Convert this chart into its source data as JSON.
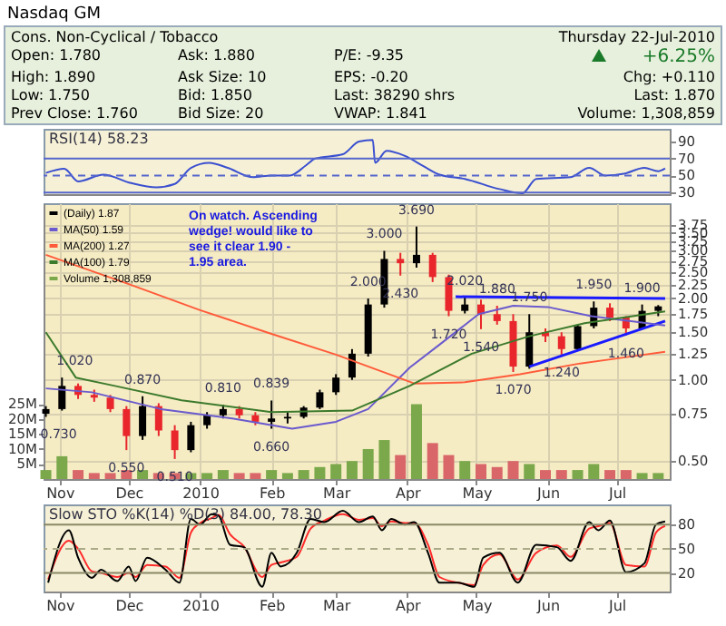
{
  "chart_data": [
    {
      "type": "other",
      "title": "Nasdaq GM",
      "annotations": [
        "Cons. Non-Cyclical / Tobacco",
        "Thursday 22-Jul-2010",
        "Open: 1.780",
        "Ask: 1.880",
        "P/E: -9.35",
        "+6.25%",
        "High: 1.890",
        "Ask Size: 10",
        "EPS: -0.20",
        "Chg: +0.110",
        "Low: 1.750",
        "Bid: 1.850",
        "Last: 38290 shrs",
        "Last: 1.870",
        "Prev Close: 1.760",
        "Bid Size: 20",
        "VWAP: 1.841",
        "Volume: 1,308,859"
      ]
    },
    {
      "type": "line",
      "title": "RSI(14) 58.23",
      "x": [
        "2009-10-26",
        "2009-11-03",
        "2009-11-09",
        "2009-11-20",
        "2009-12-02",
        "2009-12-13",
        "2009-12-21",
        "2009-12-28",
        "2010-01-05",
        "2010-01-13",
        "2010-01-24",
        "2010-02-01",
        "2010-02-09",
        "2010-02-16",
        "2010-02-20",
        "2010-03-04",
        "2010-03-11",
        "2010-03-17",
        "2010-03-18",
        "2010-03-23",
        "2010-03-31",
        "2010-04-08",
        "2010-04-15",
        "2010-04-26",
        "2010-05-11",
        "2010-05-21",
        "2010-05-27",
        "2010-06-11",
        "2010-06-19",
        "2010-06-26",
        "2010-07-04",
        "2010-07-13",
        "2010-07-19",
        "2010-07-22"
      ],
      "series": [
        {
          "color": "#3a4fd0",
          "values": [
            53,
            58,
            43,
            51,
            41,
            36,
            40,
            59,
            65,
            59,
            48,
            50,
            50,
            62,
            70,
            75,
            90,
            92,
            65,
            79,
            73,
            61,
            51,
            46,
            34,
            29,
            46,
            48,
            59,
            50,
            52,
            59,
            55,
            58.23
          ]
        }
      ],
      "xlim": [
        "2009-10-25",
        "2010-07-24"
      ],
      "ylim": [
        28,
        105
      ],
      "yticks": [
        30,
        50,
        70,
        90
      ],
      "tick_labels": "y",
      "ref_lines": [
        {
          "axis": "y",
          "value": 70,
          "color": "#5566cc"
        },
        {
          "axis": "y",
          "value": 50,
          "color": "#5566cc",
          "line_style": "dashed"
        },
        {
          "axis": "y",
          "value": 30,
          "color": "#5566cc"
        }
      ]
    },
    {
      "type": "candlestick",
      "x": [
        "2009-10-26",
        "2009-11-02",
        "2009-11-09",
        "2009-11-16",
        "2009-11-23",
        "2009-11-30",
        "2009-12-07",
        "2009-12-14",
        "2009-12-21",
        "2009-12-28",
        "2010-01-04",
        "2010-01-11",
        "2010-01-18",
        "2010-01-25",
        "2010-02-01",
        "2010-02-08",
        "2010-02-15",
        "2010-02-22",
        "2010-03-01",
        "2010-03-08",
        "2010-03-15",
        "2010-03-22",
        "2010-03-29",
        "2010-04-05",
        "2010-04-12",
        "2010-04-19",
        "2010-04-26",
        "2010-05-03",
        "2010-05-10",
        "2010-05-17",
        "2010-05-24",
        "2010-05-31",
        "2010-06-07",
        "2010-06-14",
        "2010-06-21",
        "2010-06-28",
        "2010-07-05",
        "2010-07-12",
        "2010-07-19"
      ],
      "series": [
        {
          "name": "(Daily) 1.87",
          "type": "candlestick",
          "color": "#000000",
          "colors": [
            "#000000",
            "#000000",
            "#e8262b",
            "#e8262b",
            "#e8262b",
            "#e8262b",
            "#000000",
            "#e8262b",
            "#e8262b",
            "#000000",
            "#000000",
            "#000000",
            "#e8262b",
            "#e8262b",
            "#000000",
            "#000000",
            "#000000",
            "#000000",
            "#000000",
            "#000000",
            "#000000",
            "#000000",
            "#e8262b",
            "#000000",
            "#e8262b",
            "#e8262b",
            "#000000",
            "#e8262b",
            "#e8262b",
            "#e8262b",
            "#000000",
            "#e8262b",
            "#e8262b",
            "#000000",
            "#000000",
            "#e8262b",
            "#e8262b",
            "#000000",
            "#000000"
          ],
          "ohlc": [
            [
              0.75,
              0.8,
              0.73,
              0.78
            ],
            [
              0.78,
              1.02,
              0.77,
              0.95
            ],
            [
              0.95,
              0.97,
              0.85,
              0.88
            ],
            [
              0.88,
              0.92,
              0.83,
              0.86
            ],
            [
              0.86,
              0.88,
              0.76,
              0.78
            ],
            [
              0.78,
              0.8,
              0.55,
              0.62
            ],
            [
              0.62,
              0.87,
              0.6,
              0.8
            ],
            [
              0.8,
              0.82,
              0.62,
              0.65
            ],
            [
              0.65,
              0.68,
              0.51,
              0.55
            ],
            [
              0.55,
              0.7,
              0.54,
              0.68
            ],
            [
              0.68,
              0.76,
              0.66,
              0.74
            ],
            [
              0.74,
              0.81,
              0.72,
              0.78
            ],
            [
              0.78,
              0.8,
              0.72,
              0.74
            ],
            [
              0.74,
              0.76,
              0.68,
              0.7
            ],
            [
              0.7,
              0.839,
              0.66,
              0.72
            ],
            [
              0.72,
              0.76,
              0.69,
              0.73
            ],
            [
              0.73,
              0.8,
              0.72,
              0.79
            ],
            [
              0.79,
              0.92,
              0.78,
              0.9
            ],
            [
              0.9,
              1.05,
              0.88,
              1.02
            ],
            [
              1.02,
              1.3,
              1.0,
              1.25
            ],
            [
              1.25,
              2.0,
              1.22,
              1.9
            ],
            [
              1.9,
              3.0,
              1.85,
              2.8
            ],
            [
              2.8,
              2.95,
              2.43,
              2.7
            ],
            [
              2.7,
              3.69,
              2.6,
              2.9
            ],
            [
              2.9,
              2.95,
              2.3,
              2.4
            ],
            [
              2.4,
              2.45,
              1.72,
              1.8
            ],
            [
              1.8,
              2.02,
              1.76,
              1.9
            ],
            [
              1.9,
              1.98,
              1.54,
              1.75
            ],
            [
              1.75,
              1.88,
              1.6,
              1.65
            ],
            [
              1.65,
              1.75,
              1.07,
              1.12
            ],
            [
              1.12,
              1.75,
              1.1,
              1.5
            ],
            [
              1.5,
              1.55,
              1.38,
              1.45
            ],
            [
              1.45,
              1.5,
              1.24,
              1.3
            ],
            [
              1.3,
              1.6,
              1.28,
              1.58
            ],
            [
              1.58,
              1.95,
              1.55,
              1.85
            ],
            [
              1.85,
              1.92,
              1.65,
              1.7
            ],
            [
              1.7,
              1.72,
              1.46,
              1.55
            ],
            [
              1.55,
              1.9,
              1.54,
              1.8
            ],
            [
              1.8,
              1.89,
              1.72,
              1.87
            ]
          ]
        },
        {
          "name": "MA(50) 1.59",
          "type": "line",
          "color": "#6a5acd",
          "x": [
            "2009-10-26",
            "2009-11-15",
            "2009-12-15",
            "2010-01-15",
            "2010-02-10",
            "2010-03-01",
            "2010-03-15",
            "2010-04-02",
            "2010-04-15",
            "2010-05-02",
            "2010-05-17",
            "2010-06-01",
            "2010-06-20",
            "2010-07-22"
          ],
          "values": [
            0.93,
            0.9,
            0.78,
            0.72,
            0.66,
            0.7,
            0.78,
            1.11,
            1.35,
            1.75,
            1.88,
            1.86,
            1.72,
            1.59
          ]
        },
        {
          "name": "MA(200) 1.27",
          "type": "line",
          "color": "#ff5b3a",
          "x": [
            "2009-10-26",
            "2009-12-01",
            "2010-01-01",
            "2010-02-01",
            "2010-03-01",
            "2010-04-04",
            "2010-04-26",
            "2010-05-20",
            "2010-06-15",
            "2010-07-01",
            "2010-07-22"
          ],
          "values": [
            2.9,
            2.26,
            1.81,
            1.48,
            1.24,
            0.97,
            0.98,
            1.05,
            1.15,
            1.2,
            1.27
          ]
        },
        {
          "name": "MA(100) 1.79",
          "type": "line",
          "color": "#3c7a2c",
          "x": [
            "2009-10-26",
            "2009-11-08",
            "2009-11-25",
            "2009-12-24",
            "2010-02-01",
            "2010-03-08",
            "2010-04-02",
            "2010-04-29",
            "2010-05-24",
            "2010-06-17",
            "2010-07-22"
          ],
          "values": [
            1.5,
            1.02,
            0.95,
            0.84,
            0.76,
            0.77,
            0.95,
            1.25,
            1.45,
            1.62,
            1.79
          ]
        },
        {
          "name": "Volume 1,308,859",
          "type": "bar",
          "axis": "y2",
          "color": "#7aa84a",
          "colors": [
            "#7aa84a",
            "#7aa84a",
            "#d9676a",
            "#d9676a",
            "#d9676a",
            "#d9676a",
            "#7aa84a",
            "#d9676a",
            "#d9676a",
            "#7aa84a",
            "#7aa84a",
            "#7aa84a",
            "#d9676a",
            "#d9676a",
            "#7aa84a",
            "#7aa84a",
            "#7aa84a",
            "#7aa84a",
            "#7aa84a",
            "#7aa84a",
            "#7aa84a",
            "#7aa84a",
            "#d9676a",
            "#7aa84a",
            "#d9676a",
            "#d9676a",
            "#7aa84a",
            "#d9676a",
            "#d9676a",
            "#d9676a",
            "#7aa84a",
            "#d9676a",
            "#d9676a",
            "#7aa84a",
            "#7aa84a",
            "#d9676a",
            "#d9676a",
            "#7aa84a",
            "#7aa84a"
          ],
          "values": [
            3,
            7.6,
            3,
            2,
            2,
            3,
            3,
            2,
            2,
            2,
            2,
            3,
            2,
            2,
            3,
            2,
            3,
            4,
            5,
            6,
            10,
            13,
            8,
            25,
            12,
            8,
            6,
            5,
            4,
            6,
            5,
            3,
            3,
            3,
            5,
            3,
            3,
            2,
            2
          ]
        },
        {
          "type": "line",
          "color": "#1a1aff",
          "x": [
            "2010-04-22",
            "2010-07-22"
          ],
          "values": [
            2.03,
            2.0
          ]
        },
        {
          "type": "line",
          "color": "#1a1aff",
          "x": [
            "2010-05-24",
            "2010-07-22"
          ],
          "values": [
            1.12,
            1.65
          ]
        }
      ],
      "xlim": [
        "2009-10-25",
        "2010-07-24"
      ],
      "xticks": [
        {
          "value": "2009-11-01",
          "label": "Nov"
        },
        {
          "value": "2009-12-01",
          "label": "Dec"
        },
        {
          "value": "2010-01-01",
          "label": "2010"
        },
        {
          "value": "2010-02-01",
          "label": "Feb"
        },
        {
          "value": "2010-03-01",
          "label": "Mar"
        },
        {
          "value": "2010-04-01",
          "label": "Apr"
        },
        {
          "value": "2010-05-01",
          "label": "May"
        },
        {
          "value": "2010-06-01",
          "label": "Jun"
        },
        {
          "value": "2010-07-01",
          "label": "Jul"
        }
      ],
      "log": "y",
      "ylim": [
        0.43,
        4.5
      ],
      "yticks": [
        {
          "value": 0.5,
          "label": "0.50"
        },
        {
          "value": 0.75,
          "label": "0.75"
        },
        {
          "value": 1,
          "label": "1.00"
        },
        {
          "value": 1.25,
          "label": "1.25"
        },
        {
          "value": 1.5,
          "label": "1.50"
        },
        {
          "value": 1.75,
          "label": "1.75"
        },
        {
          "value": 2,
          "label": "2.00"
        },
        {
          "value": 2.25,
          "label": "2.25"
        },
        {
          "value": 2.5,
          "label": "2.50"
        },
        {
          "value": 2.75,
          "label": "2.75"
        },
        {
          "value": 3,
          "label": "3.00"
        },
        {
          "value": 3.25,
          "label": "3.25"
        },
        {
          "value": 3.5,
          "label": "3.50"
        },
        {
          "value": 3.75,
          "label": "3.75"
        }
      ],
      "y2lim": [
        0,
        92
      ],
      "y2ticks": [
        {
          "value": 5,
          "label": "5M"
        },
        {
          "value": 10,
          "label": "10M"
        },
        {
          "value": 15,
          "label": "15M"
        },
        {
          "value": 20,
          "label": "20M"
        },
        {
          "value": 25,
          "label": "25M"
        }
      ],
      "grid": true,
      "legend": "top left",
      "annotations": [
        "On watch. Ascending wedge! would like to see it clear 1.90 - 1.95 area.",
        {
          "text": "0.730",
          "x": "2009-10-26",
          "y": 0.73
        },
        {
          "text": "1.020",
          "x": "2009-11-02",
          "y": 1.02
        },
        {
          "text": "0.550",
          "x": "2009-11-30",
          "y": 0.55
        },
        {
          "text": "0.870",
          "x": "2009-12-07",
          "y": 0.87
        },
        {
          "text": "0.510",
          "x": "2009-12-21",
          "y": 0.51
        },
        {
          "text": "0.810",
          "x": "2010-01-11",
          "y": 0.81
        },
        {
          "text": "0.660",
          "x": "2010-02-01",
          "y": 0.66
        },
        {
          "text": "0.839",
          "x": "2010-02-01",
          "y": 0.839
        },
        {
          "text": "2.000",
          "x": "2010-03-15",
          "y": 2.0
        },
        {
          "text": "3.000",
          "x": "2010-03-22",
          "y": 3.0
        },
        {
          "text": "2.430",
          "x": "2010-03-29",
          "y": 2.43
        },
        {
          "text": "3.690",
          "x": "2010-04-05",
          "y": 3.69
        },
        {
          "text": "1.720",
          "x": "2010-04-19",
          "y": 1.72
        },
        {
          "text": "2.020",
          "x": "2010-04-26",
          "y": 2.02
        },
        {
          "text": "1.880",
          "x": "2010-05-10",
          "y": 1.88
        },
        {
          "text": "1.540",
          "x": "2010-05-03",
          "y": 1.54
        },
        {
          "text": "1.750",
          "x": "2010-05-24",
          "y": 1.75
        },
        {
          "text": "1.070",
          "x": "2010-05-17",
          "y": 1.07
        },
        {
          "text": "1.240",
          "x": "2010-06-07",
          "y": 1.24
        },
        {
          "text": "1.950",
          "x": "2010-06-21",
          "y": 1.95
        },
        {
          "text": "1.460",
          "x": "2010-07-05",
          "y": 1.46
        },
        {
          "text": "1.900",
          "x": "2010-07-12",
          "y": 1.9
        }
      ]
    },
    {
      "type": "line",
      "title": "Slow STO %K(14) %D(3) 84.00, 78.30",
      "x": [
        "2009-10-27",
        "2009-11-05",
        "2009-11-09",
        "2009-11-15",
        "2009-11-19",
        "2009-11-26",
        "2009-12-01",
        "2009-12-04",
        "2009-12-09",
        "2009-12-17",
        "2009-12-23",
        "2009-12-28",
        "2010-01-01",
        "2010-01-06",
        "2010-01-09",
        "2010-01-14",
        "2010-01-20",
        "2010-01-28",
        "2010-02-01",
        "2010-02-05",
        "2010-02-12",
        "2010-02-18",
        "2010-02-24",
        "2010-03-04",
        "2010-03-11",
        "2010-03-17",
        "2010-03-21",
        "2010-03-25",
        "2010-03-31",
        "2010-04-04",
        "2010-04-10",
        "2010-04-15",
        "2010-04-23",
        "2010-04-30",
        "2010-05-04",
        "2010-05-11",
        "2010-05-19",
        "2010-05-27",
        "2010-06-05",
        "2010-06-11",
        "2010-06-19",
        "2010-06-23",
        "2010-06-28",
        "2010-07-05",
        "2010-07-13",
        "2010-07-18",
        "2010-07-22"
      ],
      "series": [
        {
          "color": "#ff2a2a",
          "values": [
            12,
            60,
            50,
            22,
            20,
            15,
            20,
            15,
            30,
            28,
            14,
            70,
            82,
            88,
            92,
            68,
            53,
            15,
            30,
            33,
            40,
            75,
            85,
            93,
            86,
            88,
            78,
            84,
            82,
            82,
            55,
            15,
            8,
            5,
            30,
            43,
            12,
            45,
            54,
            40,
            75,
            78,
            82,
            30,
            28,
            70,
            78.3
          ]
        },
        {
          "color": "#000000",
          "values": [
            8,
            73,
            39,
            14,
            24,
            10,
            28,
            10,
            39,
            24,
            8,
            87,
            80,
            93,
            91,
            55,
            52,
            3,
            45,
            28,
            45,
            87,
            83,
            97,
            83,
            90,
            73,
            87,
            80,
            83,
            45,
            8,
            8,
            3,
            39,
            45,
            8,
            55,
            52,
            35,
            83,
            73,
            85,
            21,
            32,
            80,
            84
          ]
        }
      ],
      "xlim": [
        "2009-10-25",
        "2010-07-24"
      ],
      "xticks": [
        {
          "value": "2009-11-01",
          "label": "Nov"
        },
        {
          "value": "2009-12-01",
          "label": "Dec"
        },
        {
          "value": "2010-01-01",
          "label": "2010"
        },
        {
          "value": "2010-02-01",
          "label": "Feb"
        },
        {
          "value": "2010-03-01",
          "label": "Mar"
        },
        {
          "value": "2010-04-01",
          "label": "Apr"
        },
        {
          "value": "2010-05-01",
          "label": "May"
        },
        {
          "value": "2010-06-01",
          "label": "Jun"
        },
        {
          "value": "2010-07-01",
          "label": "Jul"
        }
      ],
      "ylim": [
        -3,
        105
      ],
      "yticks": [
        20,
        50,
        80
      ],
      "ref_lines": [
        {
          "axis": "y",
          "value": 80,
          "color": "#888866"
        },
        {
          "axis": "y",
          "value": 50,
          "color": "#aaaa88",
          "line_style": "dashed"
        },
        {
          "axis": "y",
          "value": 20,
          "color": "#888866"
        }
      ]
    }
  ]
}
